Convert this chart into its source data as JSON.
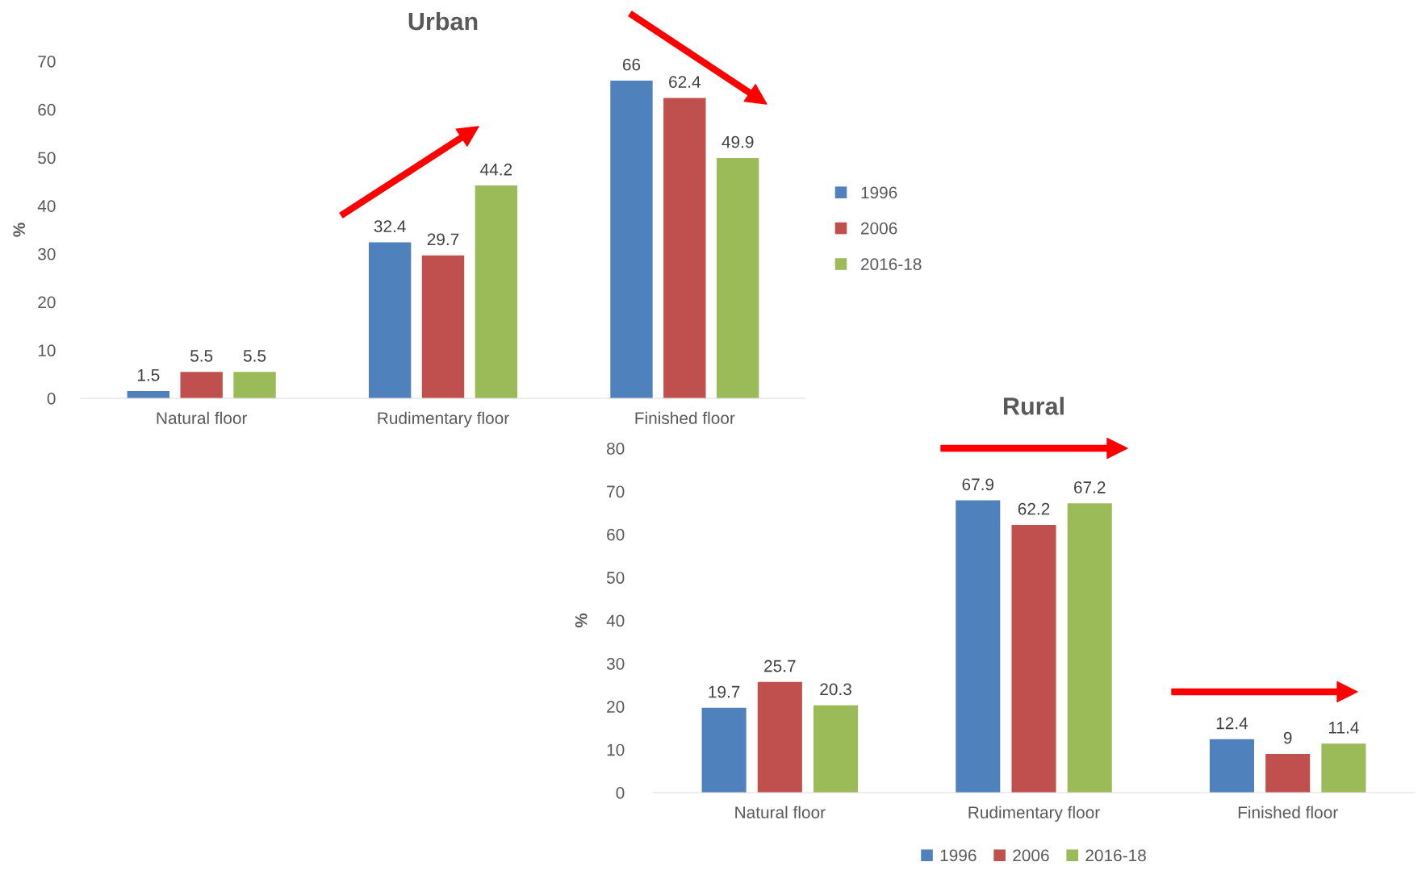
{
  "chart_data": [
    {
      "type": "bar",
      "title": "Urban",
      "ylabel": "%",
      "categories": [
        "Natural floor",
        "Rudimentary floor",
        "Finished floor"
      ],
      "series": [
        {
          "name": "1996",
          "color": "#4f81bd",
          "values": [
            1.5,
            32.4,
            66
          ]
        },
        {
          "name": "2006",
          "color": "#c0504d",
          "values": [
            5.5,
            29.7,
            62.4
          ]
        },
        {
          "name": "2016-18",
          "color": "#9bbb59",
          "values": [
            5.5,
            44.2,
            49.9
          ]
        }
      ],
      "ylim": [
        0,
        70
      ],
      "yticks": [
        0,
        10,
        20,
        30,
        40,
        50,
        60,
        70
      ],
      "data_labels": true,
      "grid": false,
      "legend": "right"
    },
    {
      "type": "bar",
      "title": "Rural",
      "ylabel": "%",
      "categories": [
        "Natural floor",
        "Rudimentary floor",
        "Finished floor"
      ],
      "series": [
        {
          "name": "1996",
          "color": "#4f81bd",
          "values": [
            19.7,
            67.9,
            12.4
          ]
        },
        {
          "name": "2006",
          "color": "#c0504d",
          "values": [
            25.7,
            62.2,
            9
          ]
        },
        {
          "name": "2016-18",
          "color": "#9bbb59",
          "values": [
            20.3,
            67.2,
            11.4
          ]
        }
      ],
      "ylim": [
        0,
        80
      ],
      "yticks": [
        0,
        10,
        20,
        30,
        40,
        50,
        60,
        70,
        80
      ],
      "data_labels": true,
      "grid": false,
      "legend": "bottom"
    }
  ]
}
